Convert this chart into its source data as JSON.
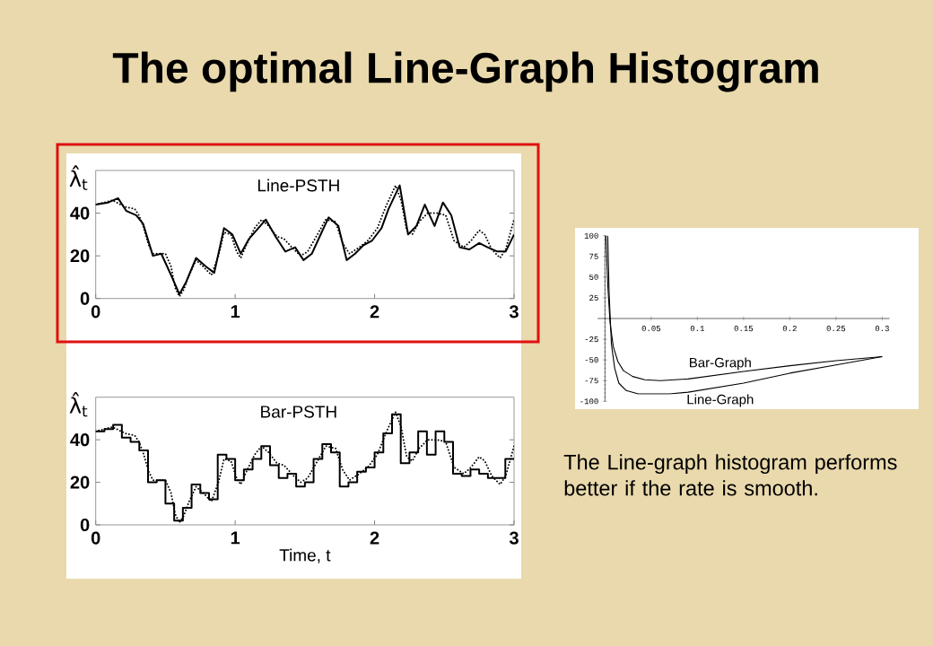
{
  "chart_data": [
    {
      "type": "line",
      "title": "Line-PSTH",
      "ylabel": "λ̂$_{t}$",
      "annotations": [
        "The optimal Line-Graph Histogram"
      ],
      "xlim": [
        0,
        3
      ],
      "ylim": [
        0,
        60
      ],
      "xticks": [
        0,
        1,
        2,
        3
      ],
      "yticks": [
        0,
        20,
        40
      ],
      "series": [
        {
          "color": "#000000",
          "line_style": "solid",
          "x": [
            0,
            0.09,
            0.16,
            0.22,
            0.29,
            0.34,
            0.41,
            0.47,
            0.54,
            0.6,
            0.65,
            0.72,
            0.79,
            0.85,
            0.92,
            0.98,
            1.04,
            1.1,
            1.22,
            1.29,
            1.36,
            1.43,
            1.49,
            1.55,
            1.62,
            1.67,
            1.74,
            1.8,
            1.86,
            1.92,
            1.98,
            2.05,
            2.1,
            2.18,
            2.24,
            2.3,
            2.36,
            2.43,
            2.49,
            2.55,
            2.61,
            2.68,
            2.75,
            2.81,
            2.88,
            2.94,
            3.0
          ],
          "values": [
            44,
            45,
            47,
            41,
            39,
            35,
            20,
            21,
            11,
            2,
            8,
            19,
            15,
            12,
            33,
            30,
            21,
            28,
            37,
            29,
            22,
            24,
            18,
            21,
            31,
            38,
            34,
            18,
            21,
            25,
            27,
            33,
            42,
            53,
            30,
            34,
            44,
            34,
            45,
            39,
            24,
            23,
            26,
            24,
            22,
            22,
            30
          ]
        },
        {
          "color": "#000000",
          "line_style": "dotted",
          "x": [
            0,
            0.12,
            0.21,
            0.28,
            0.31,
            0.34,
            0.38,
            0.41,
            0.47,
            0.5,
            0.54,
            0.57,
            0.6,
            0.63,
            0.67,
            0.72,
            0.77,
            0.83,
            0.88,
            0.92,
            0.97,
            1.01,
            1.04,
            1.08,
            1.14,
            1.19,
            1.24,
            1.3,
            1.35,
            1.42,
            1.47,
            1.52,
            1.59,
            1.65,
            1.72,
            1.77,
            1.82,
            1.89,
            1.95,
            2.02,
            2.08,
            2.15,
            2.19,
            2.23,
            2.27,
            2.32,
            2.38,
            2.45,
            2.51,
            2.57,
            2.64,
            2.69,
            2.75,
            2.79,
            2.84,
            2.9,
            2.94,
            3.0
          ],
          "values": [
            44,
            46,
            43,
            42,
            39,
            34,
            25,
            21,
            21,
            21,
            15,
            5,
            1,
            4,
            11,
            18,
            15,
            11,
            20,
            31,
            30,
            22,
            19,
            25,
            33,
            37,
            34,
            29,
            28,
            23,
            20,
            22,
            30,
            37,
            36,
            26,
            21,
            24,
            27,
            33,
            43,
            53,
            46,
            32,
            30,
            36,
            40,
            40,
            39,
            27,
            24,
            27,
            32,
            30,
            23,
            19,
            23,
            37
          ]
        }
      ]
    },
    {
      "type": "step",
      "title": "Bar-PSTH",
      "xlabel": "Time, t",
      "ylabel": "λ̂$_{t}$",
      "xlim": [
        0,
        3
      ],
      "ylim": [
        0,
        60
      ],
      "xticks": [
        0,
        1,
        2,
        3
      ],
      "yticks": [
        0,
        20,
        40
      ],
      "series": [
        {
          "color": "#000000",
          "line_style": "solid",
          "x": [
            0,
            0.0625,
            0.125,
            0.1875,
            0.25,
            0.3125,
            0.375,
            0.4375,
            0.5,
            0.5625,
            0.625,
            0.6875,
            0.75,
            0.8125,
            0.875,
            0.9375,
            1,
            1.0625,
            1.125,
            1.1875,
            1.25,
            1.3125,
            1.375,
            1.4375,
            1.5,
            1.5625,
            1.625,
            1.6875,
            1.75,
            1.8125,
            1.875,
            1.9375,
            2,
            2.0625,
            2.125,
            2.1875,
            2.25,
            2.3125,
            2.375,
            2.4375,
            2.5,
            2.5625,
            2.625,
            2.6875,
            2.75,
            2.8125,
            2.875,
            2.9375,
            3
          ],
          "values": [
            44,
            45,
            47,
            41,
            39,
            35,
            20,
            21,
            10,
            2,
            8,
            19,
            15,
            12,
            33,
            31,
            21,
            26,
            31,
            37,
            28,
            22,
            24,
            18,
            20,
            31,
            38,
            34,
            18,
            20,
            25,
            27,
            34,
            43,
            52,
            29,
            34,
            44,
            33,
            44,
            39,
            24,
            23,
            26,
            24,
            22,
            22,
            31,
            31
          ]
        },
        {
          "type": "line",
          "color": "#000000",
          "line_style": "dotted",
          "x": [
            0,
            0.12,
            0.21,
            0.28,
            0.31,
            0.34,
            0.38,
            0.41,
            0.47,
            0.5,
            0.54,
            0.57,
            0.6,
            0.63,
            0.67,
            0.72,
            0.77,
            0.83,
            0.88,
            0.92,
            0.97,
            1.01,
            1.04,
            1.08,
            1.14,
            1.19,
            1.24,
            1.3,
            1.35,
            1.42,
            1.47,
            1.52,
            1.59,
            1.65,
            1.72,
            1.77,
            1.82,
            1.89,
            1.95,
            2.02,
            2.08,
            2.15,
            2.19,
            2.23,
            2.27,
            2.32,
            2.38,
            2.45,
            2.51,
            2.57,
            2.64,
            2.69,
            2.75,
            2.79,
            2.84,
            2.9,
            2.94,
            3.0
          ],
          "values": [
            44,
            46,
            43,
            42,
            39,
            34,
            25,
            21,
            21,
            21,
            15,
            5,
            1,
            4,
            11,
            18,
            15,
            11,
            20,
            31,
            30,
            22,
            19,
            25,
            33,
            37,
            34,
            29,
            28,
            23,
            20,
            22,
            30,
            37,
            36,
            26,
            21,
            24,
            27,
            33,
            43,
            53,
            46,
            32,
            30,
            36,
            40,
            40,
            39,
            27,
            24,
            27,
            32,
            30,
            23,
            19,
            23,
            37
          ]
        }
      ]
    },
    {
      "type": "line",
      "annotations": [
        "The Line-graph histogram performs better if the rate is smooth."
      ],
      "xlim": [
        -0.008,
        0.308
      ],
      "ylim": [
        -100,
        100
      ],
      "xticks": [
        0.05,
        0.1,
        0.15,
        0.2,
        0.25,
        0.3
      ],
      "yticks": [
        -100,
        -75,
        -50,
        -25,
        25,
        50,
        75,
        100
      ],
      "series": [
        {
          "name": "Bar-Graph",
          "color": "#000000",
          "line_style": "solid",
          "x": [
            0.001,
            0.003,
            0.0055,
            0.009,
            0.014,
            0.02,
            0.03,
            0.043,
            0.06,
            0.09,
            0.15,
            0.2,
            0.25,
            0.3
          ],
          "values": [
            100,
            41,
            -5,
            -34,
            -52,
            -63,
            -70,
            -74,
            -75,
            -73,
            -64,
            -57,
            -51,
            -46
          ]
        },
        {
          "name": "Line-Graph",
          "color": "#000000",
          "line_style": "solid",
          "x": [
            0.003,
            0.0045,
            0.007,
            0.0105,
            0.015,
            0.023,
            0.036,
            0.07,
            0.09,
            0.15,
            0.2,
            0.25,
            0.3
          ],
          "values": [
            100,
            30,
            -31,
            -60,
            -78,
            -87,
            -91,
            -91,
            -89,
            -78,
            -66,
            -56,
            -46
          ]
        }
      ]
    }
  ]
}
